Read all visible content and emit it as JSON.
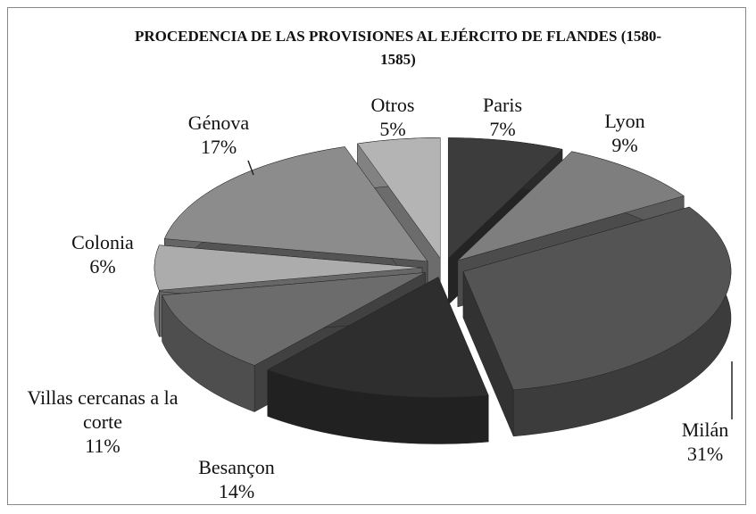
{
  "chart_data": {
    "type": "pie3d",
    "title": "PROCEDENCIA DE LAS PROVISIONES AL EJÉRCITO DE FLANDES (1580-1585)",
    "categories": [
      "Paris",
      "Lyon",
      "Milán",
      "Besançon",
      "Villas cercanas a la corte",
      "Colonia",
      "Génova",
      "Otros"
    ],
    "values": [
      7,
      9,
      31,
      14,
      11,
      6,
      17,
      5
    ],
    "value_labels": [
      "7%",
      "9%",
      "31%",
      "14%",
      "11%",
      "6%",
      "17%",
      "5%"
    ],
    "colors": [
      "#3c3c3c",
      "#7e7e7e",
      "#545454",
      "#2e2e2e",
      "#6c6c6c",
      "#acacac",
      "#8c8c8c",
      "#b4b4b4"
    ]
  }
}
